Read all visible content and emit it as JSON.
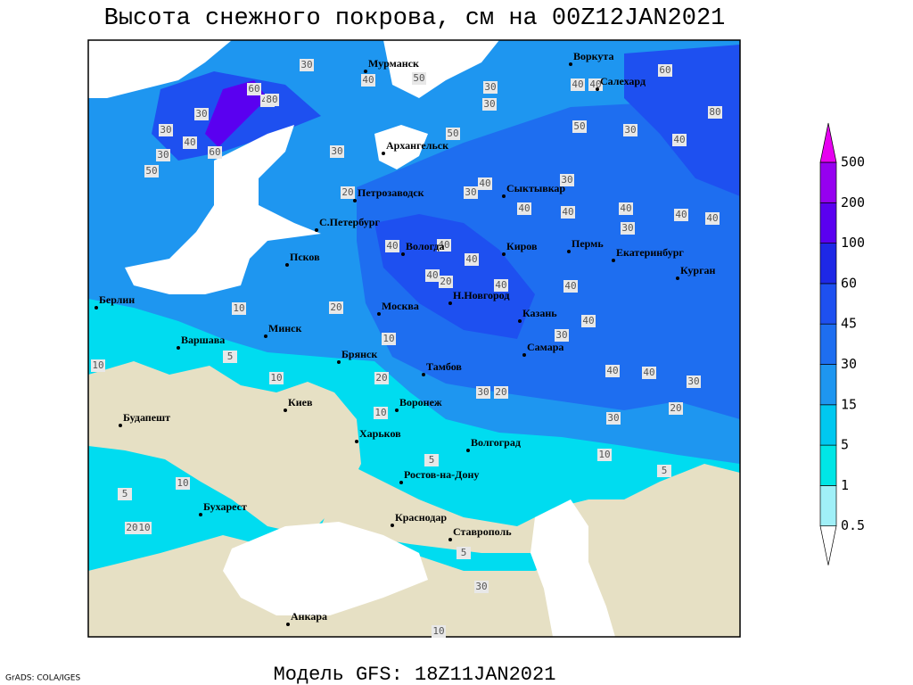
{
  "header": {
    "title": "Высота снежного покрова, см на 00Z12JAN2021"
  },
  "map": {
    "cities": [
      "Мурманск",
      "Воркута",
      "Салехард",
      "Архангельск",
      "Петрозаводск",
      "Сыктывкар",
      "С.Петербург",
      "Вологда",
      "Киров",
      "Пермь",
      "Екатеринбург",
      "Курган",
      "Псков",
      "Берлин",
      "Москва",
      "Н.Новгород",
      "Казань",
      "Минск",
      "Варшава",
      "Самара",
      "Брянск",
      "Тамбов",
      "Киев",
      "Воронеж",
      "Будапешт",
      "Харьков",
      "Волгоград",
      "Ростов-на-Дону",
      "Бухарест",
      "Краснодар",
      "Ставрополь",
      "Анкара"
    ],
    "contour_labels": [
      30,
      40,
      60,
      80,
      30,
      30,
      40,
      60,
      30,
      50,
      40,
      50,
      30,
      40,
      40,
      60,
      80,
      30,
      50,
      50,
      30,
      40,
      30,
      20,
      30,
      40,
      30,
      40,
      40,
      40,
      40,
      40,
      30,
      40,
      40,
      40,
      20,
      40,
      40,
      40,
      10,
      20,
      40,
      10,
      30,
      10,
      10,
      20,
      40,
      40,
      30,
      20,
      30,
      20,
      10,
      30,
      10,
      5,
      5,
      10,
      5,
      5,
      20,
      10,
      5,
      30,
      10
    ]
  },
  "colorbar": {
    "levels": [
      0.5,
      1,
      5,
      15,
      30,
      45,
      60,
      100,
      200,
      500
    ],
    "colors": [
      "#ffffff",
      "#a0f0f8",
      "#00e6e6",
      "#00c8f0",
      "#1e96f0",
      "#1e6ef0",
      "#1e50f0",
      "#1e28e6",
      "#5a00f0",
      "#9600f0",
      "#e600f0"
    ]
  },
  "footer": {
    "model": "Модель GFS: 18Z11JAN2021",
    "credit": "GrADS: COLA/IGES"
  }
}
